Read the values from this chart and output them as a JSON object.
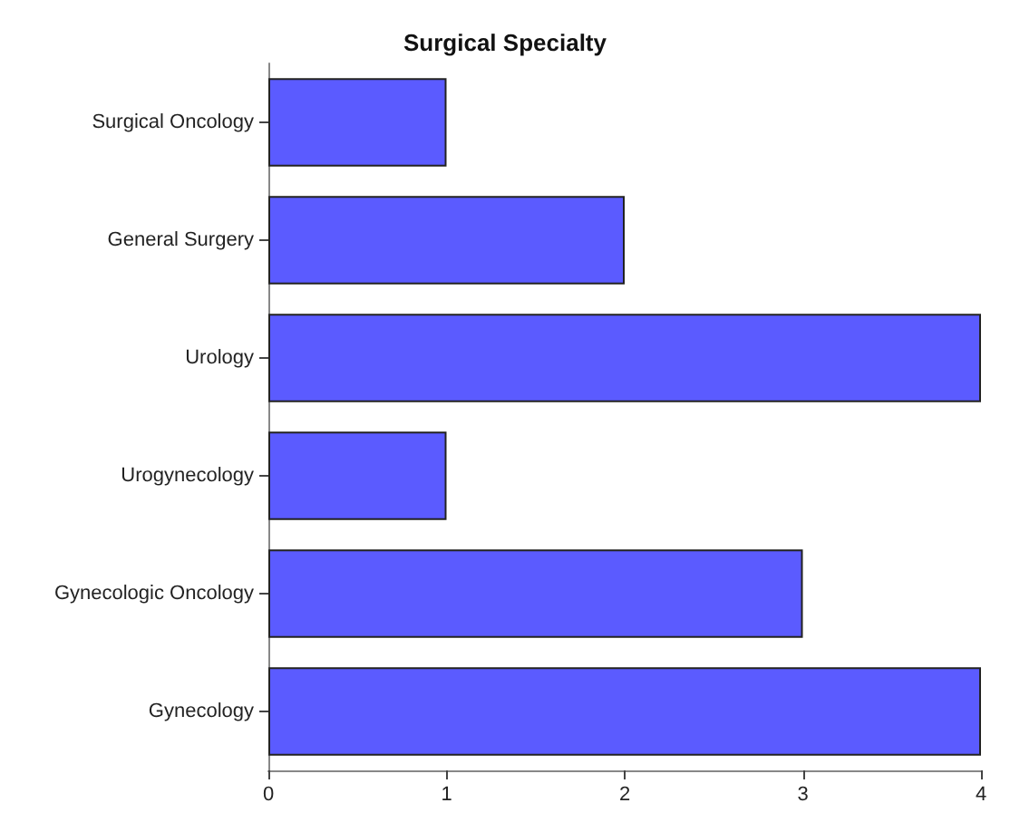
{
  "chart_data": {
    "type": "bar",
    "title": "Surgical Specialty",
    "orientation": "horizontal",
    "categories": [
      "Surgical Oncology",
      "General Surgery",
      "Urology",
      "Urogynecology",
      "Gynecologic Oncology",
      "Gynecology"
    ],
    "values": [
      1,
      2,
      4,
      1,
      3,
      4
    ],
    "color": "#5b5bff",
    "xlim": [
      0,
      4
    ],
    "xticks": [
      0,
      1,
      2,
      3,
      4
    ],
    "grid": false
  }
}
